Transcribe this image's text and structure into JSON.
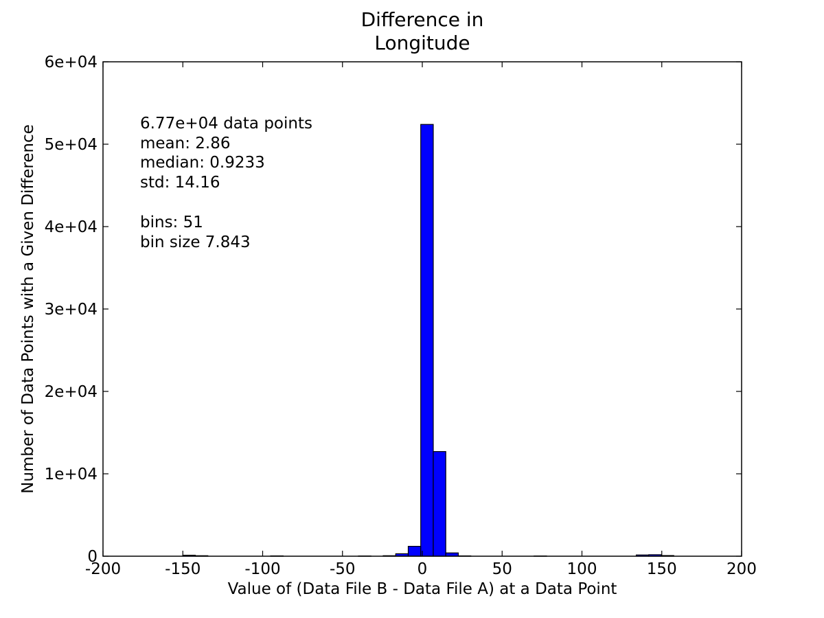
{
  "chart_data": {
    "type": "bar",
    "title_lines": [
      "Difference in",
      "Longitude"
    ],
    "xlabel": "Value of (Data File B - Data File A) at a Data Point",
    "ylabel": "Number of Data Points with a Given Difference",
    "xlim": [
      -200,
      200
    ],
    "ylim": [
      0,
      60000
    ],
    "x_ticks": [
      -200,
      -150,
      -100,
      -50,
      0,
      50,
      100,
      150,
      200
    ],
    "x_tick_labels": [
      "-200",
      "-150",
      "-100",
      "-50",
      "0",
      "50",
      "100",
      "150",
      "200"
    ],
    "y_ticks": [
      0,
      10000,
      20000,
      30000,
      40000,
      50000,
      60000
    ],
    "y_tick_labels": [
      "0",
      "1e+04",
      "2e+04",
      "3e+04",
      "4e+04",
      "5e+04",
      "6e+04"
    ],
    "grid": false,
    "bar_color": "#0000ff",
    "stats": {
      "lines": [
        "6.77e+04 data points",
        "mean: 2.86",
        "median: 0.9233",
        "std: 14.16",
        "",
        "bins: 51",
        "bin size 7.843"
      ]
    },
    "bins": [
      {
        "start": -150.0,
        "end": -142.157,
        "count": 120
      },
      {
        "start": -142.157,
        "end": -134.314,
        "count": 60
      },
      {
        "start": -95.0,
        "end": -87.157,
        "count": 40
      },
      {
        "start": -40.0,
        "end": -32.157,
        "count": 30
      },
      {
        "start": -24.5,
        "end": -16.657,
        "count": 60
      },
      {
        "start": -16.657,
        "end": -8.814,
        "count": 300
      },
      {
        "start": -8.814,
        "end": -0.971,
        "count": 1200
      },
      {
        "start": -0.971,
        "end": 6.872,
        "count": 52400
      },
      {
        "start": 6.872,
        "end": 14.715,
        "count": 12700
      },
      {
        "start": 14.715,
        "end": 22.558,
        "count": 400
      },
      {
        "start": 22.558,
        "end": 30.401,
        "count": 40
      },
      {
        "start": 70.0,
        "end": 77.843,
        "count": 30
      },
      {
        "start": 134.0,
        "end": 141.843,
        "count": 150
      },
      {
        "start": 141.843,
        "end": 149.686,
        "count": 180
      },
      {
        "start": 149.686,
        "end": 157.529,
        "count": 80
      }
    ]
  }
}
